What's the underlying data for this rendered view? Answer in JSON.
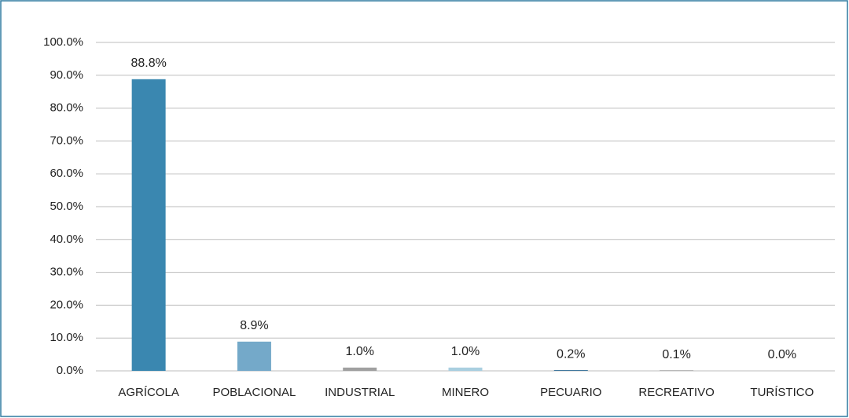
{
  "chart_data": {
    "type": "bar",
    "categories": [
      "AGRÍCOLA",
      "POBLACIONAL",
      "INDUSTRIAL",
      "MINERO",
      "PECUARIO",
      "RECREATIVO",
      "TURÍSTICO"
    ],
    "values": [
      88.8,
      8.9,
      1.0,
      1.0,
      0.2,
      0.1,
      0.0
    ],
    "value_labels": [
      "88.8%",
      "8.9%",
      "1.0%",
      "1.0%",
      "0.2%",
      "0.1%",
      "0.0%"
    ],
    "colors": [
      "#3a87b0",
      "#74a9c9",
      "#a0a0a0",
      "#a9cfe0",
      "#1f5f8b",
      "#666666",
      "#111111"
    ],
    "ylim": [
      0,
      100
    ],
    "yticks": [
      {
        "value": 0,
        "label": "0.0%"
      },
      {
        "value": 10,
        "label": "10.0%"
      },
      {
        "value": 20,
        "label": "20.0%"
      },
      {
        "value": 30,
        "label": "30.0%"
      },
      {
        "value": 40,
        "label": "40.0%"
      },
      {
        "value": 50,
        "label": "50.0%"
      },
      {
        "value": 60,
        "label": "60.0%"
      },
      {
        "value": 70,
        "label": "70.0%"
      },
      {
        "value": 80,
        "label": "80.0%"
      },
      {
        "value": 90,
        "label": "90.0%"
      },
      {
        "value": 100,
        "label": "100.0%"
      }
    ],
    "grid": true
  }
}
